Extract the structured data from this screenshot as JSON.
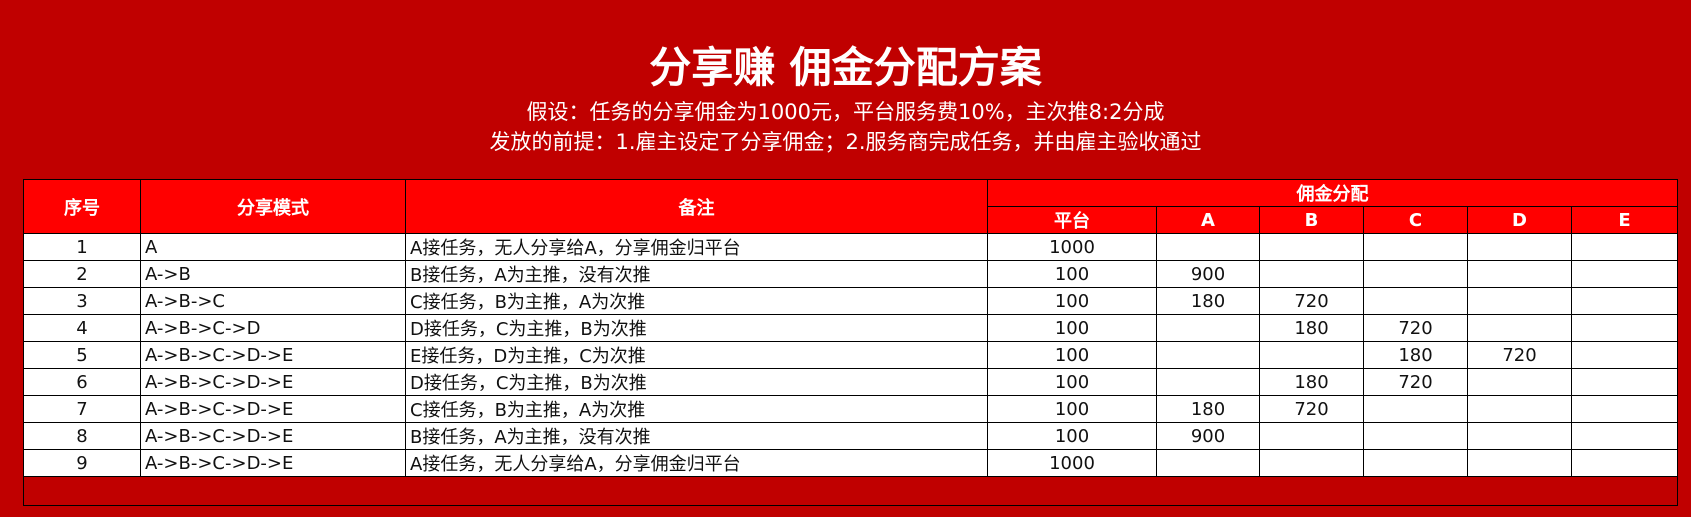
{
  "title": "分享赚 佣金分配方案",
  "subtitle_lines": [
    "假设：任务的分享佣金为1000元，平台服务费10%，主次推8:2分成",
    "发放的前提：1.雇主设定了分享佣金；2.服务商完成任务，并由雇主验收通过"
  ],
  "headers": {
    "index": "序号",
    "mode": "分享模式",
    "note": "备注",
    "commission": "佣金分配",
    "sub": [
      "平台",
      "A",
      "B",
      "C",
      "D",
      "E"
    ]
  },
  "rows": [
    {
      "index": "1",
      "mode": "A",
      "note": "A接任务，无人分享给A，分享佣金归平台",
      "alloc": [
        "1000",
        "",
        "",
        "",
        "",
        ""
      ]
    },
    {
      "index": "2",
      "mode": "A->B",
      "note": "B接任务，A为主推，没有次推",
      "alloc": [
        "100",
        "900",
        "",
        "",
        "",
        ""
      ]
    },
    {
      "index": "3",
      "mode": "A->B->C",
      "note": "C接任务，B为主推，A为次推",
      "alloc": [
        "100",
        "180",
        "720",
        "",
        "",
        ""
      ]
    },
    {
      "index": "4",
      "mode": "A->B->C->D",
      "note": "D接任务，C为主推，B为次推",
      "alloc": [
        "100",
        "",
        "180",
        "720",
        "",
        ""
      ]
    },
    {
      "index": "5",
      "mode": "A->B->C->D->E",
      "note": "E接任务，D为主推，C为次推",
      "alloc": [
        "100",
        "",
        "",
        "180",
        "720",
        ""
      ]
    },
    {
      "index": "6",
      "mode": "A->B->C->D->E",
      "note": "D接任务，C为主推，B为次推",
      "alloc": [
        "100",
        "",
        "180",
        "720",
        "",
        ""
      ]
    },
    {
      "index": "7",
      "mode": "A->B->C->D->E",
      "note": "C接任务，B为主推，A为次推",
      "alloc": [
        "100",
        "180",
        "720",
        "",
        "",
        ""
      ]
    },
    {
      "index": "8",
      "mode": "A->B->C->D->E",
      "note": "B接任务，A为主推，没有次推",
      "alloc": [
        "100",
        "900",
        "",
        "",
        "",
        ""
      ]
    },
    {
      "index": "9",
      "mode": "A->B->C->D->E",
      "note": "A接任务，无人分享给A，分享佣金归平台",
      "alloc": [
        "1000",
        "",
        "",
        "",
        "",
        ""
      ]
    }
  ],
  "colors": {
    "background": "#c00000",
    "header": "#ff0000"
  }
}
